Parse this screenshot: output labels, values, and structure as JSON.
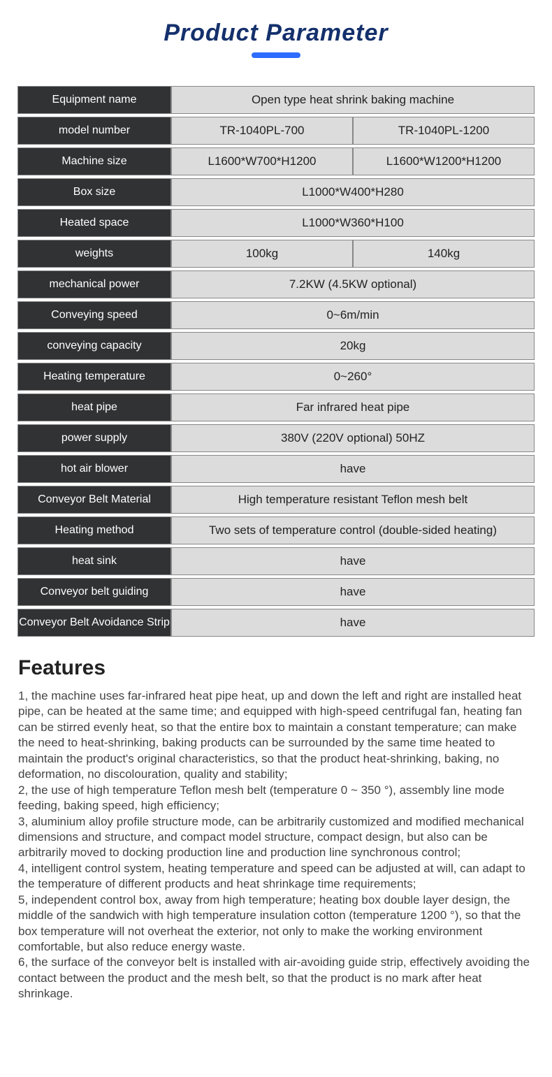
{
  "title": "Product Parameter",
  "title_color": "#14306c",
  "underline_color": "#2e6bff",
  "table": {
    "label_bg": "#303234",
    "label_color": "#ffffff",
    "value_bg": "#dcdcdc",
    "border_color": "#888888",
    "rows": [
      {
        "label": "Equipment name",
        "values": [
          "Open type heat shrink baking machine"
        ]
      },
      {
        "label": "model number",
        "values": [
          "TR-1040PL-700",
          "TR-1040PL-1200"
        ]
      },
      {
        "label": "Machine size",
        "values": [
          "L1600*W700*H1200",
          "L1600*W1200*H1200"
        ]
      },
      {
        "label": "Box size",
        "values": [
          "L1000*W400*H280"
        ]
      },
      {
        "label": "Heated space",
        "values": [
          "L1000*W360*H100"
        ]
      },
      {
        "label": "weights",
        "values": [
          "100kg",
          "140kg"
        ]
      },
      {
        "label": "mechanical power",
        "values": [
          "7.2KW (4.5KW optional)"
        ]
      },
      {
        "label": "Conveying speed",
        "values": [
          "0~6m/min"
        ]
      },
      {
        "label": "conveying capacity",
        "values": [
          "20kg"
        ]
      },
      {
        "label": "Heating temperature",
        "values": [
          "0~260°"
        ]
      },
      {
        "label": "heat pipe",
        "values": [
          "Far infrared heat pipe"
        ]
      },
      {
        "label": "power supply",
        "values": [
          "380V (220V optional) 50HZ"
        ]
      },
      {
        "label": "hot air blower",
        "values": [
          "have"
        ]
      },
      {
        "label": "Conveyor Belt Material",
        "values": [
          "High temperature resistant Teflon mesh belt"
        ]
      },
      {
        "label": "Heating method",
        "values": [
          "Two sets of temperature control (double-sided heating)"
        ]
      },
      {
        "label": "heat sink",
        "values": [
          "have"
        ]
      },
      {
        "label": "Conveyor belt guiding",
        "values": [
          "have"
        ]
      },
      {
        "label": "Conveyor Belt Avoidance Strip",
        "values": [
          "have"
        ]
      }
    ]
  },
  "features": {
    "heading": "Features",
    "body": "1, the machine uses far-infrared heat pipe heat, up and down the left and right are installed heat pipe, can be heated at the same time; and equipped with high-speed centrifugal fan, heating fan can be stirred evenly heat, so that the entire box to maintain a constant temperature; can make the need to heat-shrinking, baking products can be surrounded by the same time heated to maintain the product's original characteristics, so that the product heat-shrinking, baking, no deformation, no discolouration, quality and stability;\n2, the use of high temperature Teflon mesh belt (temperature 0 ~ 350 °), assembly line mode feeding, baking speed, high efficiency;\n3, aluminium alloy profile structure mode, can be arbitrarily customized and modified mechanical dimensions and structure, and compact model structure, compact design, but also can be arbitrarily moved to docking production line and production line synchronous control;\n4, intelligent control system, heating temperature and speed can be adjusted at will, can adapt to the temperature of different products and heat shrinkage time requirements;\n5, independent control box, away from high temperature; heating box double layer design, the middle of the sandwich with high temperature insulation cotton (temperature 1200 °), so that the box temperature will not overheat the exterior, not only to make the working environment comfortable, but also reduce energy waste.\n6, the surface of the conveyor belt is installed with air-avoiding guide strip, effectively avoiding the contact between the product and the mesh belt, so that the product is no mark after heat shrinkage."
  }
}
